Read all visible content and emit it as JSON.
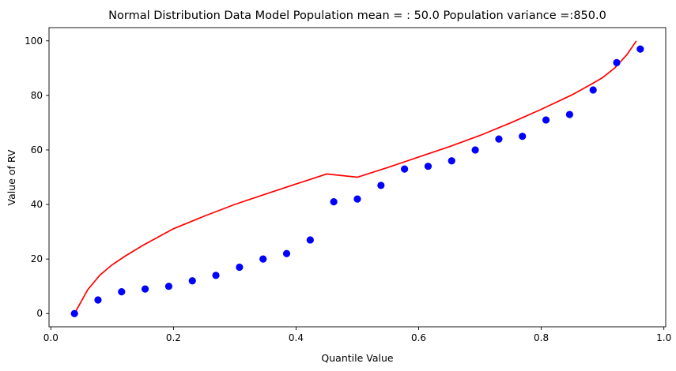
{
  "chart_data": {
    "type": "scatter",
    "title": "Normal Distribution Data Model Population mean = : 50.0 Population variance =:850.0",
    "xlabel": "Quantile Value",
    "ylabel": "Value of RV",
    "xlim": [
      -0.003,
      1.003
    ],
    "ylim": [
      -4.85,
      104.85
    ],
    "xticks": [
      0.0,
      0.2,
      0.4,
      0.6,
      0.8,
      1.0
    ],
    "xtick_labels": [
      "0.0",
      "0.2",
      "0.4",
      "0.6",
      "0.8",
      "1.0"
    ],
    "yticks": [
      0,
      20,
      40,
      60,
      80,
      100
    ],
    "ytick_labels": [
      "0",
      "20",
      "40",
      "60",
      "80",
      "100"
    ],
    "grid": false,
    "legend": "none",
    "series": [
      {
        "kind": "points",
        "color": "#0000ff",
        "x": [
          0.0385,
          0.0769,
          0.1154,
          0.1538,
          0.1923,
          0.2308,
          0.2692,
          0.3077,
          0.3462,
          0.3846,
          0.4231,
          0.4615,
          0.5,
          0.5385,
          0.5769,
          0.6154,
          0.6538,
          0.6923,
          0.7308,
          0.7692,
          0.8077,
          0.8462,
          0.8846,
          0.9231,
          0.9615
        ],
        "y": [
          0,
          5,
          8,
          9,
          10,
          12,
          14,
          17,
          20,
          22,
          27,
          41,
          42,
          47,
          53,
          54,
          56,
          60,
          64,
          65,
          71,
          73,
          82,
          92,
          97
        ]
      },
      {
        "kind": "line",
        "color": "#ff0000",
        "x": [
          0.0385,
          0.045,
          0.06,
          0.08,
          0.1,
          0.12,
          0.15,
          0.2,
          0.25,
          0.3,
          0.35,
          0.4,
          0.45,
          0.5,
          0.55,
          0.6,
          0.65,
          0.7,
          0.75,
          0.8,
          0.85,
          0.88,
          0.9,
          0.92,
          0.94,
          0.955
        ],
        "y": [
          0.0,
          2.6,
          8.7,
          14.1,
          17.9,
          20.9,
          25.0,
          31.1,
          35.7,
          40.0,
          43.8,
          47.5,
          51.2,
          50.0,
          53.6,
          57.4,
          61.2,
          65.3,
          69.9,
          74.9,
          80.2,
          83.9,
          86.5,
          90.1,
          95.0,
          100.0
        ]
      }
    ]
  }
}
